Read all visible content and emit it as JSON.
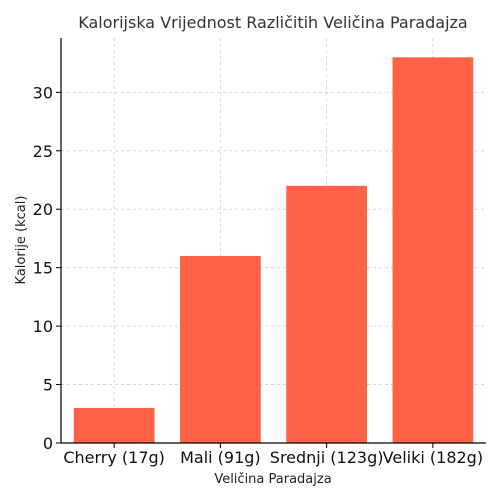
{
  "chart_data": {
    "type": "bar",
    "title": "Kalorijska Vrijednost Različitih Veličina Paradajza",
    "xlabel": "Veličina Paradajza",
    "ylabel": "Kalorije (kcal)",
    "categories": [
      "Cherry (17g)",
      "Mali (91g)",
      "Srednji (123g)",
      "Veliki (182g)"
    ],
    "values": [
      3,
      16,
      22,
      33
    ],
    "ylim": [
      0,
      34.65
    ],
    "yticks": [
      0,
      5,
      10,
      15,
      20,
      25,
      30
    ],
    "bar_color": "#ff6347",
    "grid": true
  }
}
